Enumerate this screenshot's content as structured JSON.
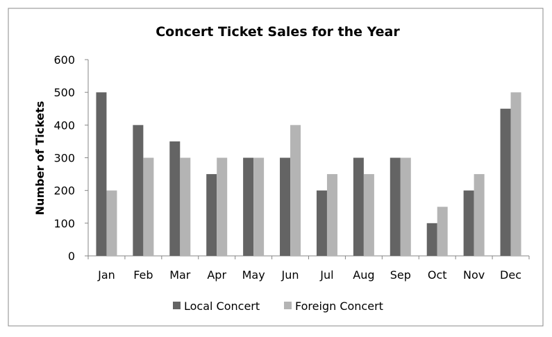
{
  "chart_data": {
    "type": "bar",
    "title": "Concert Ticket Sales for the Year",
    "xlabel": "",
    "ylabel": "Number of Tickets",
    "categories": [
      "Jan",
      "Feb",
      "Mar",
      "Apr",
      "May",
      "Jun",
      "Jul",
      "Aug",
      "Sep",
      "Oct",
      "Nov",
      "Dec"
    ],
    "series": [
      {
        "name": "Local Concert",
        "color": "#646464",
        "values": [
          500,
          400,
          350,
          250,
          300,
          300,
          200,
          300,
          300,
          100,
          200,
          450
        ]
      },
      {
        "name": "Foreign Concert",
        "color": "#b4b4b4",
        "values": [
          200,
          300,
          300,
          300,
          300,
          400,
          250,
          250,
          300,
          150,
          250,
          500
        ]
      }
    ],
    "ylim": [
      0,
      600
    ],
    "yticks": [
      0,
      100,
      200,
      300,
      400,
      500,
      600
    ],
    "grid": false,
    "legend_position": "bottom"
  }
}
